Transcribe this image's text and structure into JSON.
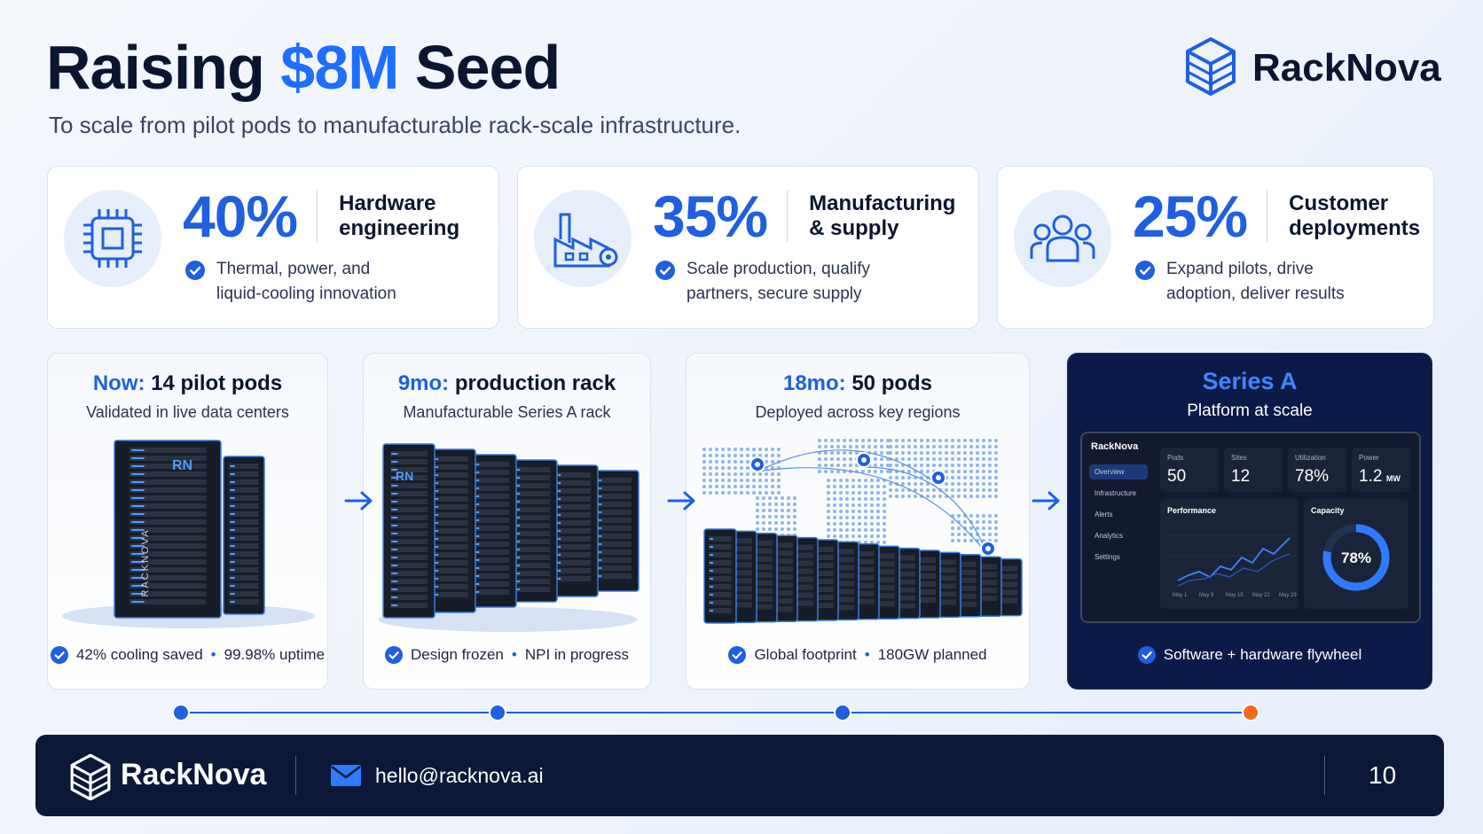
{
  "header": {
    "title_lead": "Raising",
    "title_highlight": "$8M",
    "title_tail": "Seed",
    "subtitle": "To scale from pilot pods to manufacturable rack-scale infrastructure.",
    "brand": "RackNova"
  },
  "allocations": [
    {
      "percent": "40%",
      "label_lines": [
        "Hardware",
        "engineering"
      ],
      "detail_lines": [
        "Thermal, power, and",
        "liquid-cooling innovation"
      ]
    },
    {
      "percent": "35%",
      "label_lines": [
        "Manufacturing",
        "& supply"
      ],
      "detail_lines": [
        "Scale production, qualify",
        "partners, secure supply"
      ]
    },
    {
      "percent": "25%",
      "label_lines": [
        "Customer",
        "deployments"
      ],
      "detail_lines": [
        "Expand pilots, drive",
        "adoption, deliver results"
      ]
    }
  ],
  "milestones": [
    {
      "stage": "Now:",
      "headline": "14 pilot pods",
      "subtitle": "Validated in live data centers",
      "points": [
        "42% cooling saved",
        "99.98% uptime"
      ],
      "badge": "RN",
      "vertical_brand": "RACKNOVA"
    },
    {
      "stage": "9mo:",
      "headline": "production rack",
      "subtitle": "Manufacturable Series A rack",
      "points": [
        "Design frozen",
        "NPI in progress"
      ],
      "badge": "RN"
    },
    {
      "stage": "18mo:",
      "headline": "50 pods",
      "subtitle": "Deployed across key regions",
      "points": [
        "Global footprint",
        "180GW planned"
      ]
    },
    {
      "stage": "Series A",
      "headline": "Platform at scale",
      "points": [
        "Software + hardware flywheel"
      ]
    }
  ],
  "dashboard": {
    "brand": "RackNova",
    "nav": [
      "Overview",
      "Infrastructure",
      "Alerts",
      "Analytics",
      "Settings"
    ],
    "kpis": [
      {
        "label": "Pods",
        "value": "50"
      },
      {
        "label": "Sites",
        "value": "12"
      },
      {
        "label": "Utilization",
        "value": "78%"
      },
      {
        "label": "Power",
        "value": "1.2",
        "unit": "MW"
      }
    ],
    "performance_title": "Performance",
    "capacity_title": "Capacity",
    "capacity_value": "78%",
    "dates": [
      "May 1",
      "May 8",
      "May 15",
      "May 22",
      "May 29"
    ]
  },
  "footer": {
    "brand": "RackNova",
    "email": "hello@racknova.ai",
    "page": "10"
  }
}
